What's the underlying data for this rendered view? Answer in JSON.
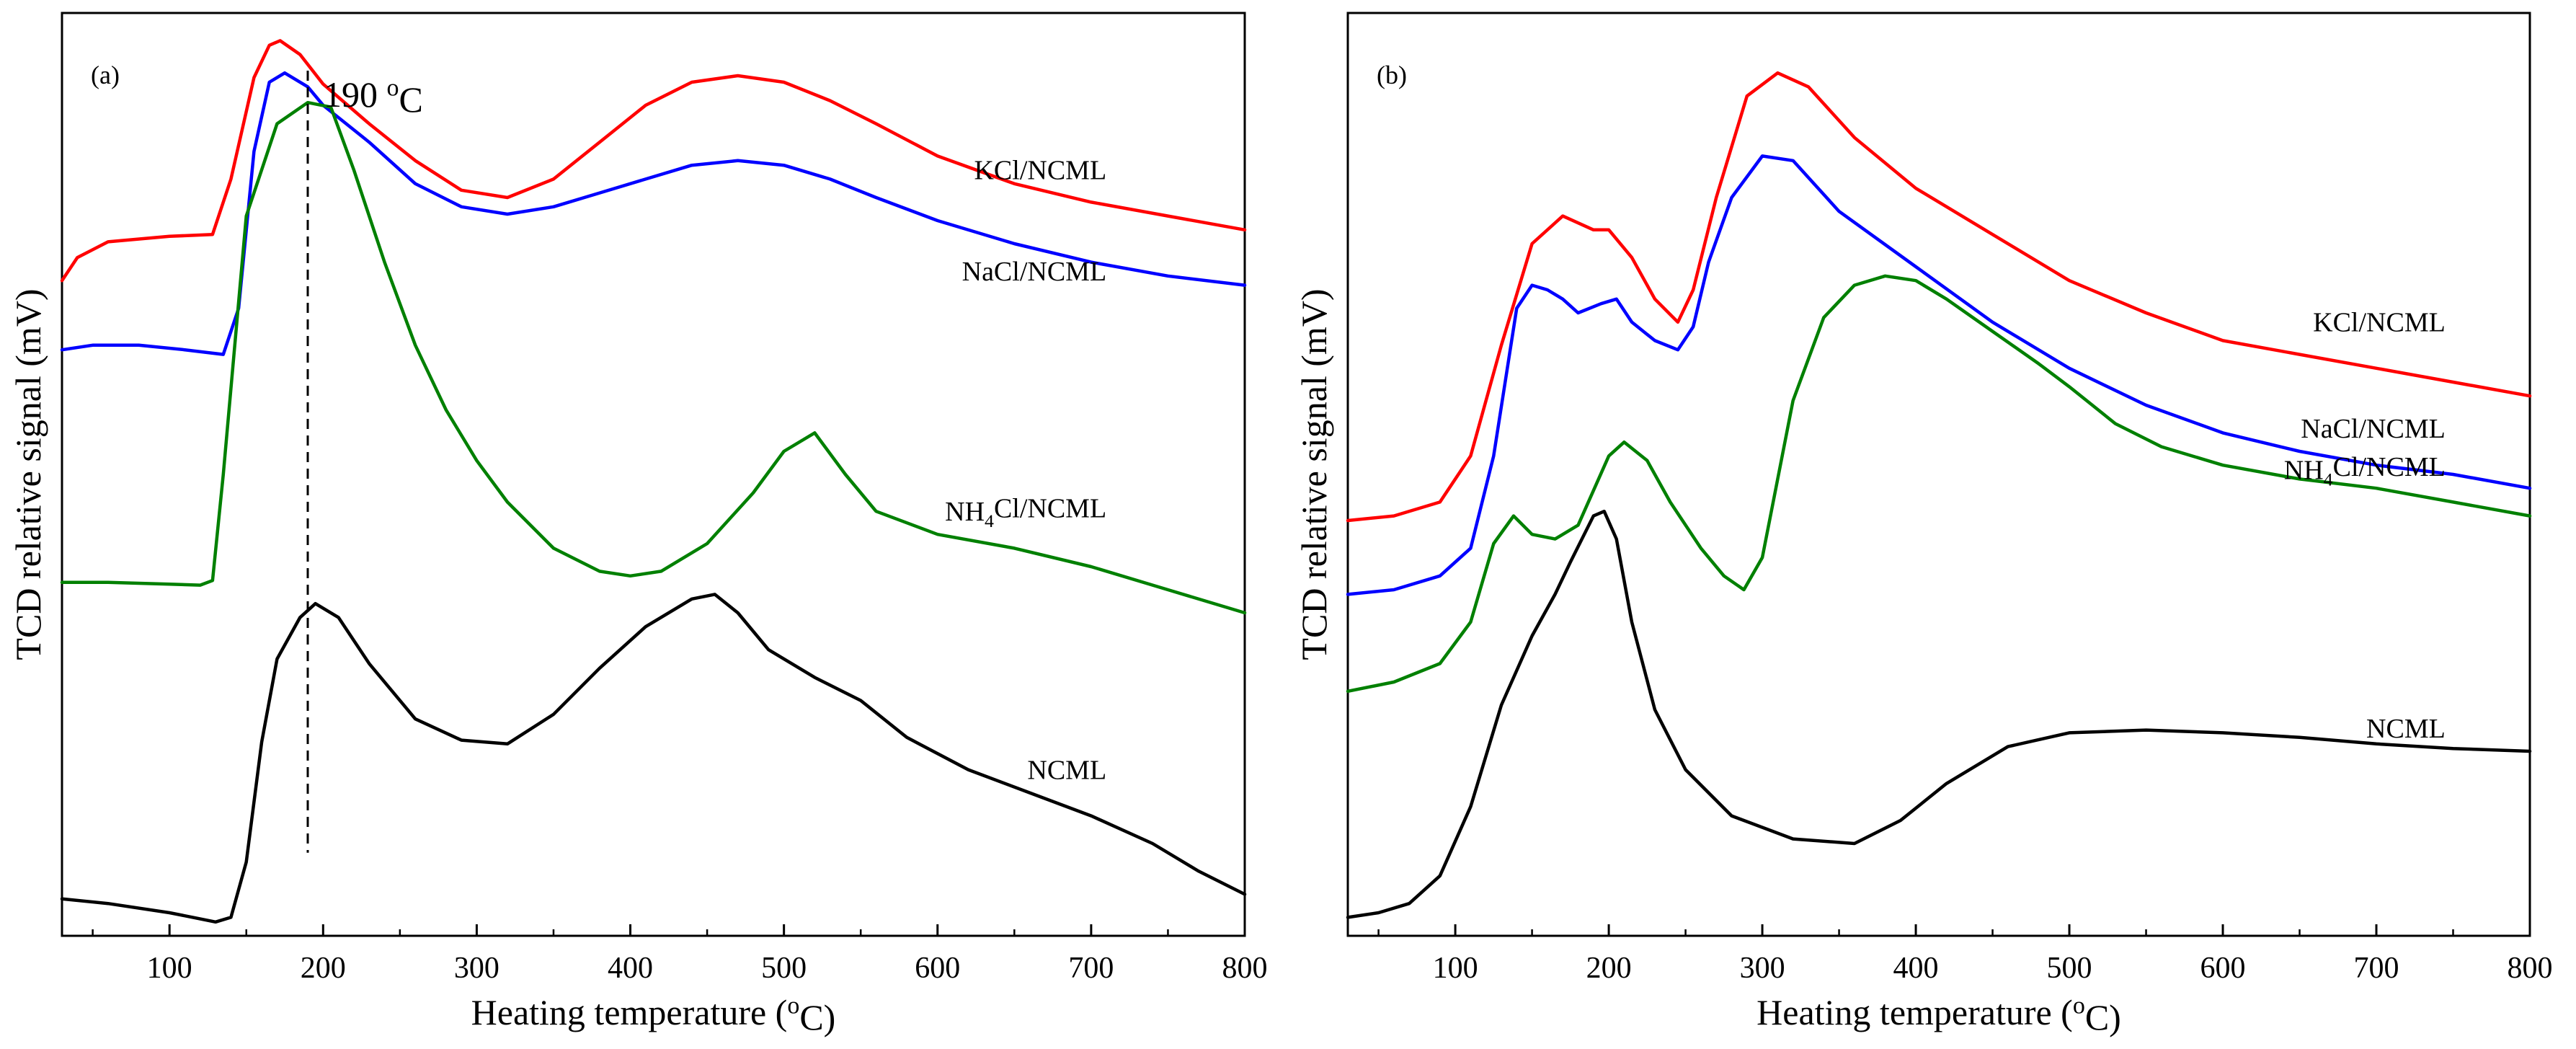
{
  "chart_data": [
    {
      "type": "line",
      "panel": "(a)",
      "xlabel": "Heating temperature (°C)",
      "xlabel_parts": {
        "before": "Heating temperature (",
        "sup": "o",
        "after": "C)"
      },
      "ylabel": "TCD relative signal (mV)",
      "xlim": [
        30,
        800
      ],
      "ylim": [
        0,
        100
      ],
      "xticks": [
        100,
        200,
        300,
        400,
        500,
        600,
        700,
        800
      ],
      "annotation": {
        "x": 190,
        "text": "190 °C",
        "text_parts": {
          "before": "190 ",
          "sup": "o",
          "after": "C"
        }
      },
      "series": [
        {
          "name": "KCl/NCML",
          "label_parts": {
            "before": "KCl/NCML",
            "sub": "",
            "after": ""
          },
          "color": "#ff0000",
          "label_at": [
            710,
            82
          ],
          "x": [
            30,
            40,
            60,
            100,
            128,
            140,
            155,
            165,
            172,
            185,
            200,
            230,
            260,
            290,
            320,
            350,
            380,
            410,
            440,
            470,
            500,
            530,
            560,
            600,
            650,
            700,
            750,
            800
          ],
          "y": [
            71,
            73.5,
            75.2,
            75.8,
            76,
            82,
            93,
            96.5,
            97,
            95.5,
            92.3,
            88,
            84,
            80.8,
            80,
            82,
            86,
            90,
            92.5,
            93.2,
            92.5,
            90.5,
            88,
            84.5,
            81.5,
            79.5,
            78,
            76.5
          ]
        },
        {
          "name": "NaCl/NCML",
          "label_parts": {
            "before": "NaCl/NCML",
            "sub": "",
            "after": ""
          },
          "color": "#0000ff",
          "label_at": [
            710,
            71
          ],
          "x": [
            30,
            50,
            80,
            110,
            135,
            145,
            155,
            165,
            175,
            190,
            200,
            230,
            260,
            290,
            320,
            350,
            380,
            410,
            440,
            470,
            500,
            530,
            560,
            600,
            650,
            700,
            750,
            800
          ],
          "y": [
            63.5,
            64,
            64,
            63.5,
            63,
            68,
            85,
            92.5,
            93.5,
            92,
            90,
            86,
            81.5,
            79,
            78.2,
            79,
            80.5,
            82,
            83.5,
            84,
            83.5,
            82,
            80,
            77.5,
            75,
            73,
            71.5,
            70.5
          ]
        },
        {
          "name": "NH4Cl/NCML",
          "label_parts": {
            "before": "NH",
            "sub": "4",
            "after": "Cl/NCML"
          },
          "color": "#008000",
          "label_at": [
            710,
            45
          ],
          "x": [
            30,
            60,
            100,
            120,
            128,
            135,
            150,
            170,
            190,
            205,
            220,
            240,
            260,
            280,
            300,
            320,
            350,
            380,
            400,
            420,
            450,
            480,
            500,
            520,
            540,
            560,
            600,
            650,
            700,
            750,
            800
          ],
          "y": [
            38.3,
            38.3,
            38.1,
            38,
            38.5,
            50,
            78,
            88,
            90.3,
            89.8,
            83,
            73,
            64,
            57,
            51.5,
            47,
            42,
            39.5,
            39,
            39.5,
            42.5,
            48,
            52.5,
            54.5,
            50,
            46,
            43.5,
            42,
            40,
            37.5,
            35
          ]
        },
        {
          "name": "NCML",
          "label_parts": {
            "before": "NCML",
            "sub": "",
            "after": ""
          },
          "color": "#000000",
          "label_at": [
            710,
            17
          ],
          "x": [
            30,
            60,
            100,
            130,
            140,
            150,
            160,
            170,
            185,
            195,
            210,
            230,
            260,
            290,
            320,
            350,
            380,
            410,
            440,
            455,
            470,
            490,
            520,
            550,
            580,
            620,
            660,
            700,
            740,
            770,
            800
          ],
          "y": [
            4,
            3.5,
            2.5,
            1.5,
            2,
            8,
            21,
            30,
            34.5,
            36,
            34.5,
            29.5,
            23.5,
            21.2,
            20.8,
            24,
            29,
            33.5,
            36.5,
            37,
            35,
            31,
            28,
            25.5,
            21.5,
            18,
            15.5,
            13,
            10,
            7,
            4.5
          ]
        }
      ]
    },
    {
      "type": "line",
      "panel": "(b)",
      "xlabel": "Heating temperature (°C)",
      "xlabel_parts": {
        "before": "Heating temperature (",
        "sup": "o",
        "after": "C)"
      },
      "ylabel": "TCD relative signal (mV)",
      "xlim": [
        30,
        800
      ],
      "ylim": [
        0,
        100
      ],
      "xticks": [
        100,
        200,
        300,
        400,
        500,
        600,
        700,
        800
      ],
      "series": [
        {
          "name": "KCl/NCML",
          "label_parts": {
            "before": "KCl/NCML",
            "sub": "",
            "after": ""
          },
          "color": "#ff0000",
          "label_at": [
            745,
            65.5
          ],
          "x": [
            30,
            60,
            90,
            110,
            130,
            150,
            170,
            190,
            200,
            215,
            230,
            245,
            255,
            270,
            290,
            310,
            330,
            360,
            400,
            450,
            500,
            550,
            600,
            650,
            700,
            750,
            800
          ],
          "y": [
            45,
            45.5,
            47,
            52,
            64,
            75,
            78,
            76.5,
            76.5,
            73.5,
            69,
            66.5,
            70,
            80,
            91,
            93.5,
            92,
            86.5,
            81,
            76,
            71,
            67.5,
            64.5,
            63,
            61.5,
            60,
            58.5
          ]
        },
        {
          "name": "NaCl/NCML",
          "label_parts": {
            "before": "NaCl/NCML",
            "sub": "",
            "after": ""
          },
          "color": "#0000ff",
          "label_at": [
            745,
            54
          ],
          "x": [
            30,
            60,
            90,
            110,
            125,
            140,
            150,
            160,
            170,
            180,
            195,
            205,
            215,
            230,
            245,
            255,
            265,
            280,
            300,
            320,
            350,
            400,
            450,
            500,
            550,
            600,
            650,
            700,
            750,
            800
          ],
          "y": [
            37,
            37.5,
            39,
            42,
            52,
            68,
            70.5,
            70,
            69,
            67.5,
            68.5,
            69,
            66.5,
            64.5,
            63.5,
            66,
            73,
            80,
            84.5,
            84,
            78.5,
            72.5,
            66.5,
            61.5,
            57.5,
            54.5,
            52.5,
            51,
            50,
            48.5
          ]
        },
        {
          "name": "NH4Cl/NCML",
          "label_parts": {
            "before": "NH",
            "sub": "4",
            "after": "Cl/NCML"
          },
          "color": "#008000",
          "label_at": [
            745,
            49.5
          ],
          "x": [
            30,
            60,
            90,
            110,
            125,
            138,
            150,
            165,
            180,
            200,
            210,
            225,
            240,
            260,
            275,
            288,
            300,
            320,
            340,
            360,
            380,
            400,
            420,
            450,
            480,
            500,
            530,
            560,
            600,
            650,
            700,
            750,
            800
          ],
          "y": [
            26.5,
            27.5,
            29.5,
            34,
            42.5,
            45.5,
            43.5,
            43,
            44.5,
            52,
            53.5,
            51.5,
            47,
            42,
            39,
            37.5,
            41,
            58,
            67,
            70.5,
            71.5,
            71,
            69,
            65.5,
            62,
            59.5,
            55.5,
            53,
            51,
            49.5,
            48.5,
            47,
            45.5
          ]
        },
        {
          "name": "NCML",
          "label_parts": {
            "before": "NCML",
            "sub": "",
            "after": ""
          },
          "color": "#000000",
          "label_at": [
            745,
            21.5
          ],
          "x": [
            30,
            50,
            70,
            90,
            110,
            130,
            150,
            165,
            175,
            190,
            197,
            205,
            215,
            230,
            250,
            280,
            320,
            360,
            390,
            420,
            460,
            500,
            550,
            600,
            650,
            700,
            750,
            800
          ],
          "y": [
            2,
            2.5,
            3.5,
            6.5,
            14,
            25,
            32.5,
            37,
            40.5,
            45.5,
            46,
            43,
            34,
            24.5,
            18,
            13,
            10.5,
            10,
            12.5,
            16.5,
            20.5,
            22,
            22.3,
            22,
            21.5,
            20.8,
            20.3,
            20
          ]
        }
      ]
    }
  ]
}
